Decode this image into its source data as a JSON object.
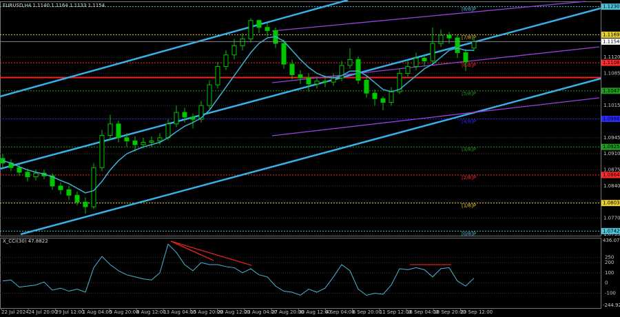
{
  "chart_data": [
    {
      "type": "candlestick",
      "title": "EURUSD,H4  1.1140 1.1164 1.1133 1.1154",
      "up_color": "#00c800",
      "down_color": "#00c800",
      "open": [
        1.09,
        1.089,
        1.088,
        1.087,
        1.086,
        1.0868,
        1.0862,
        1.084,
        1.0832,
        1.082,
        1.0805,
        1.0795,
        1.088,
        1.095,
        1.0975,
        1.0945,
        1.0938,
        1.093,
        1.0935,
        1.0938,
        1.0945,
        1.0975,
        1.1,
        1.099,
        1.0985,
        1.1015,
        1.106,
        1.11,
        1.1125,
        1.1145,
        1.116,
        1.12,
        1.1185,
        1.1178,
        1.115,
        1.1105,
        1.1082,
        1.1075,
        1.1062,
        1.1068,
        1.1066,
        1.1075,
        1.1102,
        1.1115,
        1.107,
        1.1042,
        1.103,
        1.1022,
        1.1045,
        1.1085,
        1.11,
        1.1118,
        1.1112,
        1.115,
        1.1168,
        1.1162,
        1.113,
        1.114
      ],
      "high": [
        1.091,
        1.0898,
        1.0888,
        1.0878,
        1.0876,
        1.0875,
        1.0868,
        1.0848,
        1.084,
        1.0828,
        1.0815,
        1.089,
        1.0962,
        1.0995,
        1.0982,
        1.0955,
        1.0948,
        1.0945,
        1.0948,
        1.0955,
        1.0985,
        1.1015,
        1.101,
        1.0998,
        1.1025,
        1.107,
        1.111,
        1.1135,
        1.116,
        1.1172,
        1.1205,
        1.1202,
        1.1195,
        1.1185,
        1.1158,
        1.1115,
        1.1092,
        1.1085,
        1.1078,
        1.108,
        1.1085,
        1.1112,
        1.114,
        1.1122,
        1.1078,
        1.105,
        1.1035,
        1.1055,
        1.1095,
        1.1112,
        1.113,
        1.1125,
        1.1185,
        1.118,
        1.1175,
        1.117,
        1.1138,
        1.1164
      ],
      "low": [
        1.088,
        1.0872,
        1.0862,
        1.085,
        1.0852,
        1.0855,
        1.0832,
        1.0822,
        1.081,
        1.0798,
        1.078,
        1.079,
        1.0872,
        1.094,
        1.0935,
        1.0925,
        1.0915,
        1.0922,
        1.0925,
        1.093,
        1.094,
        1.0968,
        1.0978,
        1.0965,
        1.0978,
        1.1008,
        1.1052,
        1.1092,
        1.1115,
        1.1135,
        1.1152,
        1.1172,
        1.1165,
        1.114,
        1.1095,
        1.1072,
        1.1062,
        1.1045,
        1.1052,
        1.1055,
        1.1058,
        1.1068,
        1.1095,
        1.1062,
        1.1032,
        1.1015,
        1.1005,
        1.1015,
        1.104,
        1.1078,
        1.1092,
        1.11,
        1.1105,
        1.1142,
        1.115,
        1.1118,
        1.109,
        1.1133
      ],
      "close": [
        1.089,
        1.088,
        1.087,
        1.086,
        1.0868,
        1.0862,
        1.084,
        1.0832,
        1.082,
        1.0805,
        1.0795,
        1.088,
        1.095,
        1.0975,
        1.0945,
        1.0938,
        1.093,
        1.0935,
        1.0938,
        1.0945,
        1.0975,
        1.1,
        1.099,
        1.0985,
        1.1015,
        1.106,
        1.11,
        1.1125,
        1.1145,
        1.116,
        1.12,
        1.1185,
        1.1178,
        1.115,
        1.1105,
        1.1082,
        1.1075,
        1.1062,
        1.1068,
        1.1066,
        1.1075,
        1.1102,
        1.1115,
        1.107,
        1.1042,
        1.103,
        1.1022,
        1.1045,
        1.1085,
        1.11,
        1.1118,
        1.1112,
        1.115,
        1.1168,
        1.1162,
        1.113,
        1.111,
        1.1154
      ],
      "ma": {
        "color": "#3bb4d6",
        "values": [
          1.0895,
          1.089,
          1.0882,
          1.0875,
          1.087,
          1.0866,
          1.086,
          1.0852,
          1.0845,
          1.0835,
          1.0825,
          1.083,
          1.085,
          1.0875,
          1.0895,
          1.091,
          1.0918,
          1.0925,
          1.093,
          1.0935,
          1.0945,
          1.0958,
          1.097,
          1.0978,
          1.0988,
          1.1005,
          1.103,
          1.1055,
          1.108,
          1.1105,
          1.113,
          1.115,
          1.1162,
          1.1165,
          1.1155,
          1.1135,
          1.1115,
          1.1098,
          1.1085,
          1.1078,
          1.1075,
          1.108,
          1.109,
          1.109,
          1.108,
          1.1065,
          1.105,
          1.1045,
          1.105,
          1.1065,
          1.108,
          1.1095,
          1.1105,
          1.112,
          1.1135,
          1.114,
          1.1135,
          1.1135
        ]
      },
      "ylim": [
        1.0732,
        1.124
      ],
      "yticks": [
        1.0735,
        {
          "value": 1.077,
          "label": "1.0770"
        },
        1.0805,
        {
          "value": 1.084,
          "label": "1.0840"
        },
        1.0875,
        {
          "value": 1.091,
          "label": "1.0910"
        },
        1.0945,
        1.1015,
        1.1085,
        {
          "value": 1.112,
          "label": "1.1120"
        }
      ],
      "levels": [
        {
          "name": "[8/8]P",
          "value": 1.123,
          "value_label": "1.1230",
          "color": "#4fc3d9"
        },
        {
          "name": "[7/8]P",
          "value": 1.1169,
          "color": "#e8d030"
        },
        {
          "name": "[6/8]P",
          "value": 1.1108,
          "color": "#ff2a2a"
        },
        {
          "name": "[5/8]P",
          "value": 1.1047,
          "color": "#1f9a1f"
        },
        {
          "name": "[4/8]P",
          "value": 1.0986,
          "color": "#2a2aff"
        },
        {
          "name": "[3/8]P",
          "value": 1.0925,
          "color": "#1f9a1f"
        },
        {
          "name": "[2/8]P",
          "value": 1.0864,
          "color": "#ff2a2a"
        },
        {
          "name": "[1/8]P",
          "value": 1.0803,
          "color": "#e8d030"
        },
        {
          "name": "[0/8]P",
          "value": 1.0742,
          "color": "#4fc3d9"
        }
      ],
      "support_lines": [
        {
          "value": 1.1076,
          "color": "#ff2020"
        }
      ],
      "last_price": 1.1154,
      "dates": [
        "22 Jul 2024",
        "24 Jul 20:00",
        "29 Jul 12:00",
        "1 Aug 04:00",
        "5 Aug 20:00",
        "8 Aug 12:00",
        "13 Aug 04:00",
        "15 Aug 20:00",
        "20 Aug 12:00",
        "23 Aug 04:00",
        "27 Aug 20:00",
        "30 Aug 12:00",
        "4 Sep 04:00",
        "6 Sep 20:00",
        "11 Sep 12:00",
        "16 Sep 04:00",
        "18 Sep 20:00",
        "23 Sep 12:00"
      ]
    },
    {
      "type": "line",
      "title": "X_CCI(30) 47.8822",
      "color": "#4ab8d8",
      "values": [
        20,
        30,
        -40,
        -30,
        -20,
        10,
        -70,
        -50,
        -80,
        -60,
        -90,
        150,
        260,
        180,
        120,
        80,
        60,
        40,
        30,
        100,
        380,
        300,
        180,
        120,
        200,
        180,
        180,
        160,
        150,
        100,
        140,
        80,
        60,
        -30,
        -80,
        -90,
        -120,
        -60,
        -90,
        -50,
        60,
        180,
        120,
        -60,
        -120,
        -100,
        -110,
        -20,
        140,
        130,
        150,
        130,
        60,
        140,
        150,
        20,
        -30,
        47.8822
      ],
      "ylim": [
        -244.928,
        436.0738
      ],
      "yticks": [
        -100,
        0,
        100,
        200,
        250
      ]
    }
  ]
}
